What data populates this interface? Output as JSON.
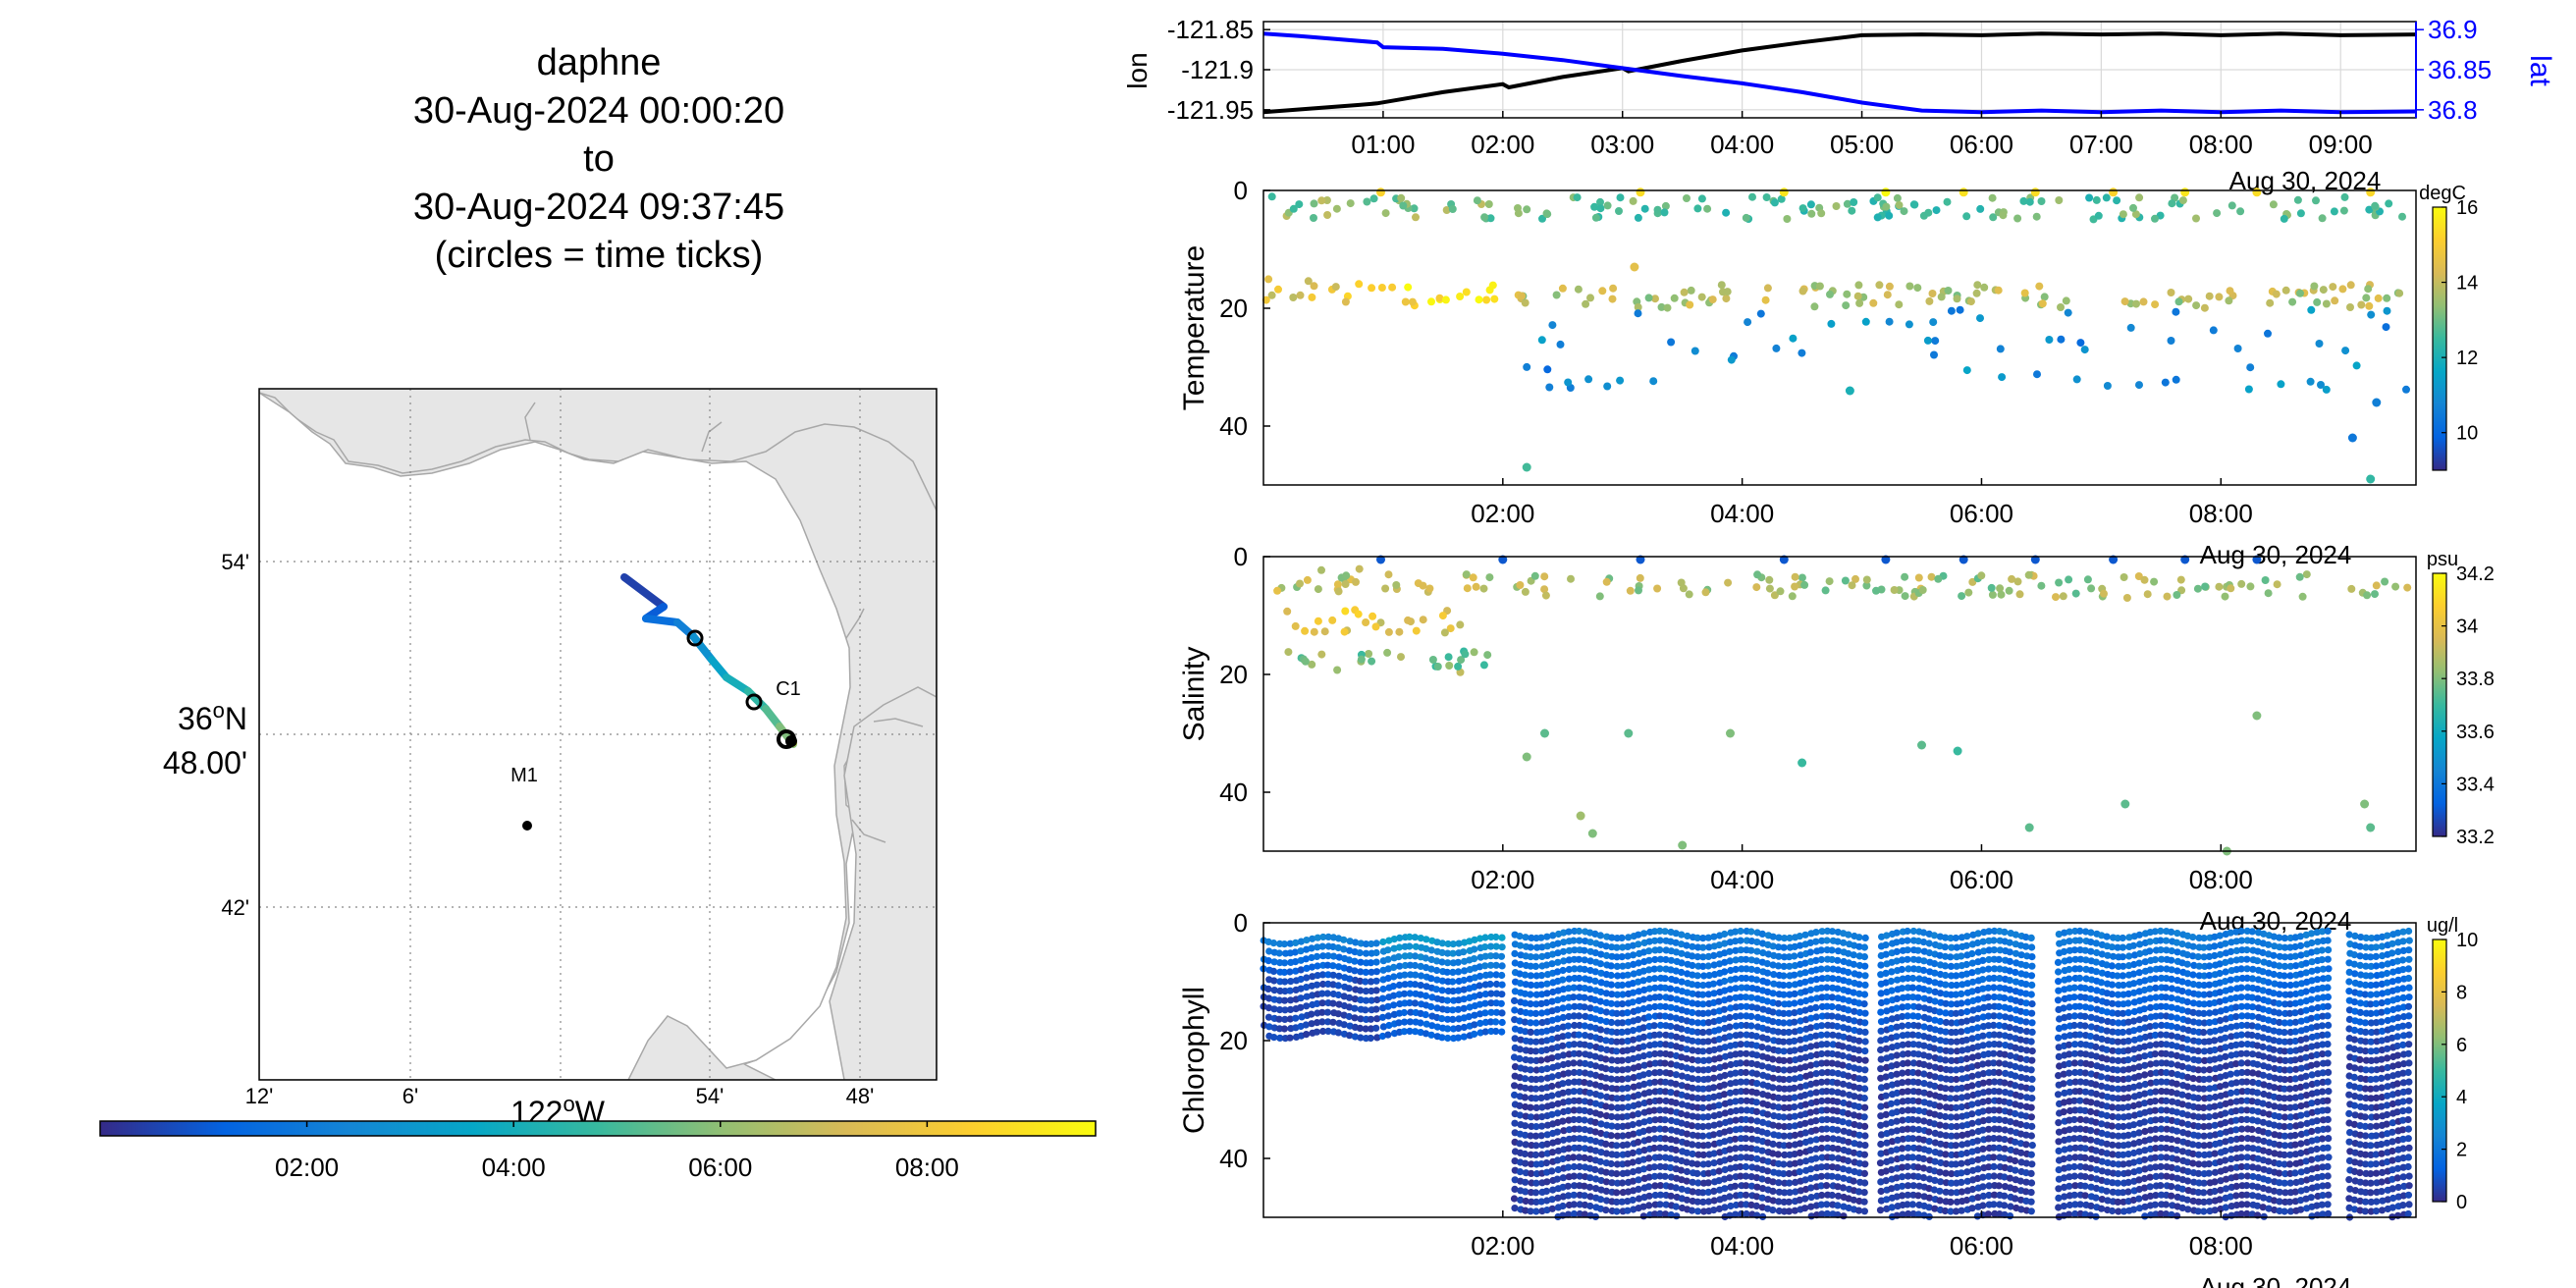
{
  "header": {
    "vehicle": "daphne",
    "start": "30-Aug-2024 00:00:20",
    "to_word": "to",
    "end": "30-Aug-2024 09:37:45",
    "note": "(circles = time ticks)"
  },
  "colors": {
    "parula": [
      "#352a87",
      "#0363e1",
      "#1485d4",
      "#06a7c6",
      "#38b99e",
      "#92bf73",
      "#d9ba56",
      "#fcce2e",
      "#f9fb0e"
    ],
    "lon_line": "#000000",
    "lat_line": "#0000ff",
    "land": "#e6e6e6",
    "grid": "#cccccc"
  },
  "map": {
    "lat_labels": [
      "54'",
      "42'"
    ],
    "lat_label_main": [
      "36",
      "o",
      "N",
      "48.00'"
    ],
    "lon_labels": [
      "12'",
      "6'",
      "54'",
      "48'"
    ],
    "lon_label_main": [
      "122",
      "o",
      "W"
    ],
    "station_m1": "M1",
    "station_c1": "C1",
    "colorbar_ticks": [
      "02:00",
      "04:00",
      "06:00",
      "08:00"
    ]
  },
  "top_panel": {
    "left_ylabel": "lon",
    "right_ylabel": "lat",
    "left_ticks": [
      "-121.85",
      "-121.9",
      "-121.95"
    ],
    "right_ticks": [
      "36.9",
      "36.85",
      "36.8"
    ],
    "x_ticks": [
      "01:00",
      "02:00",
      "03:00",
      "04:00",
      "05:00",
      "06:00",
      "07:00",
      "08:00",
      "09:00"
    ],
    "date_label": "Aug 30, 2024"
  },
  "panels": [
    {
      "ylabel": "Temperature",
      "y_ticks": [
        "0",
        "20",
        "40"
      ],
      "x_ticks": [
        "02:00",
        "04:00",
        "06:00",
        "08:00"
      ],
      "date_label": "Aug 30, 2024",
      "unit": "degC",
      "cbar_ticks": [
        "16",
        "14",
        "12",
        "10"
      ]
    },
    {
      "ylabel": "Salinity",
      "y_ticks": [
        "0",
        "20",
        "40"
      ],
      "x_ticks": [
        "02:00",
        "04:00",
        "06:00",
        "08:00"
      ],
      "date_label": "Aug 30, 2024",
      "unit": "psu",
      "cbar_ticks": [
        "34.2",
        "34",
        "33.8",
        "33.6",
        "33.4",
        "33.2"
      ]
    },
    {
      "ylabel": "Chlorophyll",
      "y_ticks": [
        "0",
        "20",
        "40"
      ],
      "x_ticks": [
        "02:00",
        "04:00",
        "06:00",
        "08:00"
      ],
      "date_label": "Aug 30, 2024",
      "unit": "ug/l",
      "cbar_ticks": [
        "10",
        "8",
        "6",
        "4",
        "2",
        "0"
      ]
    }
  ],
  "chart_data": [
    {
      "type": "line",
      "title": "",
      "x_unit": "hours since 00:00, Aug 30 2024",
      "x_range": [
        0,
        9.63
      ],
      "series": [
        {
          "name": "lon",
          "axis": "left",
          "ylim": [
            -121.96,
            -121.84
          ],
          "x": [
            0,
            0.8,
            0.95,
            1.5,
            2.0,
            2.05,
            2.5,
            3.0,
            3.05,
            3.5,
            4.0,
            4.5,
            5.0,
            5.5,
            6.0,
            6.5,
            7.0,
            7.5,
            8.0,
            8.5,
            9.0,
            9.63
          ],
          "y": [
            -121.953,
            -121.944,
            -121.942,
            -121.928,
            -121.918,
            -121.922,
            -121.909,
            -121.898,
            -121.902,
            -121.889,
            -121.876,
            -121.866,
            -121.857,
            -121.856,
            -121.857,
            -121.855,
            -121.856,
            -121.855,
            -121.857,
            -121.855,
            -121.857,
            -121.856
          ]
        },
        {
          "name": "lat",
          "axis": "right",
          "ylim": [
            36.79,
            36.91
          ],
          "x": [
            0,
            0.3,
            0.95,
            1.0,
            1.5,
            2.0,
            2.5,
            3.0,
            3.5,
            4.0,
            4.5,
            5.0,
            5.5,
            6.0,
            6.5,
            7.0,
            7.5,
            8.0,
            8.5,
            9.0,
            9.63
          ],
          "y": [
            36.895,
            36.892,
            36.884,
            36.878,
            36.876,
            36.87,
            36.862,
            36.852,
            36.842,
            36.833,
            36.822,
            36.809,
            36.799,
            36.797,
            36.799,
            36.797,
            36.799,
            36.797,
            36.799,
            36.797,
            36.798
          ]
        }
      ]
    },
    {
      "type": "scatter",
      "title": "",
      "ylabel": "Temperature",
      "x_range": [
        0,
        9.63
      ],
      "ylim": [
        0,
        50
      ],
      "color_range": [
        9,
        16
      ],
      "bands": [
        {
          "x_range": [
            0,
            2.0
          ],
          "depth": 3,
          "value": 13.2
        },
        {
          "x_range": [
            0,
            0.9
          ],
          "depth": 17,
          "value": 14.6
        },
        {
          "x_range": [
            0.9,
            2.0
          ],
          "depth": 18,
          "value": 15.4
        },
        {
          "x_range": [
            2.1,
            9.6
          ],
          "depth": 3,
          "value": 12.8
        },
        {
          "x_range": [
            2.1,
            9.6
          ],
          "depth": 18,
          "value": 13.8
        },
        {
          "x_range": [
            2.2,
            9.6
          ],
          "depth": 27,
          "value": 10.8
        }
      ],
      "points": [
        [
          0.98,
          0.3,
          15.2
        ],
        [
          3.15,
          0.3,
          15.4
        ],
        [
          4.35,
          0.3,
          15.6
        ],
        [
          5.2,
          0.3,
          16.0
        ],
        [
          5.85,
          0.3,
          15.5
        ],
        [
          6.45,
          0.3,
          15.4
        ],
        [
          7.1,
          0.3,
          15.2
        ],
        [
          7.7,
          0.3,
          15.6
        ],
        [
          8.3,
          0.3,
          15.4
        ],
        [
          9.25,
          0.3,
          15.3
        ],
        [
          2.2,
          47,
          12.6
        ],
        [
          3.1,
          13,
          14.5
        ],
        [
          4.9,
          34,
          12.0
        ],
        [
          9.1,
          42,
          10.4
        ],
        [
          9.25,
          49,
          12.4
        ],
        [
          9.3,
          36,
          10.6
        ]
      ]
    },
    {
      "type": "scatter",
      "title": "",
      "ylabel": "Salinity",
      "x_range": [
        0,
        9.63
      ],
      "ylim": [
        0,
        50
      ],
      "color_range": [
        33.2,
        34.2
      ],
      "bands": [
        {
          "x_range": [
            0,
            2.0
          ],
          "depth": 4,
          "value": 33.9
        },
        {
          "x_range": [
            0.1,
            1.8
          ],
          "depth": 11,
          "value": 34.0
        },
        {
          "x_range": [
            0.2,
            1.9
          ],
          "depth": 18,
          "value": 33.8
        },
        {
          "x_range": [
            2.1,
            9.6
          ],
          "depth": 5,
          "value": 33.85
        }
      ],
      "points": [
        [
          0.98,
          0.5,
          33.3
        ],
        [
          2.0,
          0.5,
          33.3
        ],
        [
          3.15,
          0.5,
          33.3
        ],
        [
          4.35,
          0.5,
          33.3
        ],
        [
          5.2,
          0.5,
          33.3
        ],
        [
          5.85,
          0.5,
          33.3
        ],
        [
          6.45,
          0.5,
          33.3
        ],
        [
          7.1,
          0.5,
          33.3
        ],
        [
          7.7,
          0.5,
          33.3
        ],
        [
          8.3,
          0.5,
          33.3
        ],
        [
          2.2,
          34,
          33.8
        ],
        [
          2.35,
          30,
          33.75
        ],
        [
          2.65,
          44,
          33.85
        ],
        [
          2.75,
          47,
          33.8
        ],
        [
          3.05,
          30,
          33.75
        ],
        [
          3.5,
          49,
          33.8
        ],
        [
          3.9,
          30,
          33.8
        ],
        [
          4.5,
          35,
          33.7
        ],
        [
          5.5,
          32,
          33.75
        ],
        [
          5.8,
          33,
          33.7
        ],
        [
          6.4,
          46,
          33.75
        ],
        [
          7.2,
          42,
          33.75
        ],
        [
          8.3,
          27,
          33.8
        ],
        [
          8.05,
          50,
          33.8
        ],
        [
          9.2,
          42,
          33.8
        ],
        [
          9.25,
          46,
          33.75
        ]
      ]
    },
    {
      "type": "scatter",
      "title": "",
      "ylabel": "Chlorophyll",
      "x_range": [
        0,
        9.63
      ],
      "ylim": [
        0,
        50
      ],
      "color_range": [
        0,
        10
      ],
      "profiles": [
        {
          "x_range": [
            0,
            0.95
          ],
          "depth": [
            2,
            20
          ],
          "surface_value": 2.5,
          "deep_value": 0.6
        },
        {
          "x_range": [
            1.0,
            2.0
          ],
          "depth": [
            2,
            20
          ],
          "surface_value": 3.5,
          "deep_value": 1.2
        },
        {
          "x_range": [
            2.1,
            9.6
          ],
          "depth": [
            1,
            50
          ],
          "surface_value": 2.2,
          "deep_value": 0.4
        }
      ],
      "gaps": [
        [
          5.05,
          5.15
        ],
        [
          6.45,
          6.6
        ],
        [
          8.9,
          9.05
        ]
      ]
    }
  ]
}
